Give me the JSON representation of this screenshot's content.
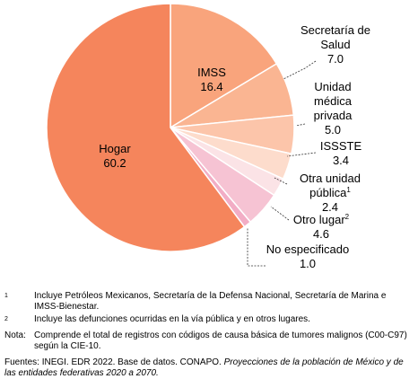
{
  "chart_data": {
    "type": "pie",
    "categories": [
      "IMSS",
      "Secretaría de Salud",
      "Unidad médica privada",
      "ISSSTE",
      "Otra unidad pública",
      "Otro lugar",
      "No especificado",
      "Hogar"
    ],
    "superscripts": [
      null,
      null,
      null,
      null,
      "1",
      "2",
      null,
      null
    ],
    "values": [
      16.4,
      7.0,
      5.0,
      3.4,
      2.4,
      4.6,
      1.0,
      60.2
    ],
    "value_labels": [
      "16.4",
      "7.0",
      "5.0",
      "3.4",
      "2.4",
      "4.6",
      "1.0",
      "60.2"
    ],
    "colors": [
      "#f9a47c",
      "#fab592",
      "#fcc5aa",
      "#fddccc",
      "#fbe3e6",
      "#f6c3d3",
      "#f2adc5",
      "#f5855c"
    ]
  },
  "footnotes": [
    {
      "marker": "1",
      "text": "Incluye Petróleos Mexicanos, Secretaría de la Defensa Nacional, Secretaría de Marina e IMSS-Bienestar."
    },
    {
      "marker": "2",
      "text": "Incluye las defunciones ocurridas en la vía pública y en otros lugares."
    }
  ],
  "note": {
    "label": "Nota:",
    "text": "Comprende el total de registros con códigos de causa básica de tumores malignos (C00-C97) según la CIE-10."
  },
  "sources": {
    "label": "Fuentes:",
    "text": "INEGI. EDR 2022. Base de datos. CONAPO.",
    "title": "Proyecciones de la población de México y de las entidades federativas 2020 a 2070."
  }
}
